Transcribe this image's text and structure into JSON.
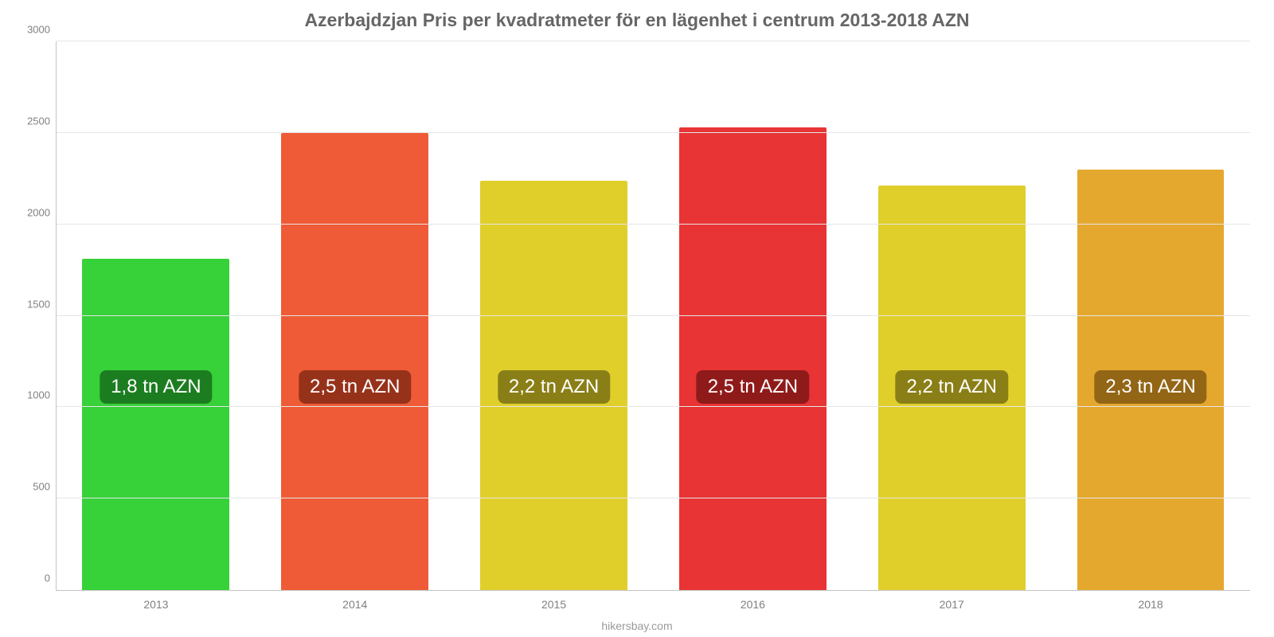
{
  "chart": {
    "type": "bar",
    "title": "Azerbajdzjan Pris per kvadratmeter för en lägenhet i centrum 2013-2018 AZN",
    "title_fontsize": 23,
    "title_color": "#666666",
    "source": "hikersbay.com",
    "background_color": "#ffffff",
    "grid_color": "#e6e6e6",
    "axis_color": "#c4c4c4",
    "tick_color": "#808080",
    "tick_fontsize": 13,
    "ylim": [
      0,
      3000
    ],
    "ytick_step": 500,
    "yticks": [
      "0",
      "500",
      "1000",
      "1500",
      "2000",
      "2500",
      "3000"
    ],
    "bar_width_pct": 74,
    "badge_fontsize": 24,
    "badge_center_value": 1100,
    "categories": [
      "2013",
      "2014",
      "2015",
      "2016",
      "2017",
      "2018"
    ],
    "values": [
      1810,
      2500,
      2240,
      2530,
      2210,
      2300
    ],
    "bar_colors": [
      "#37d13a",
      "#ef5b36",
      "#e0cf2b",
      "#e83434",
      "#e0cf2b",
      "#e5a82f"
    ],
    "badge_labels": [
      "1,8 tn AZN",
      "2,5 tn AZN",
      "2,2 tn AZN",
      "2,5 tn AZN",
      "2,2 tn AZN",
      "2,3 tn AZN"
    ],
    "badge_bg_colors": [
      "#1c7d20",
      "#97321a",
      "#8a7f17",
      "#8f1a1a",
      "#8a7f17",
      "#936616"
    ]
  }
}
